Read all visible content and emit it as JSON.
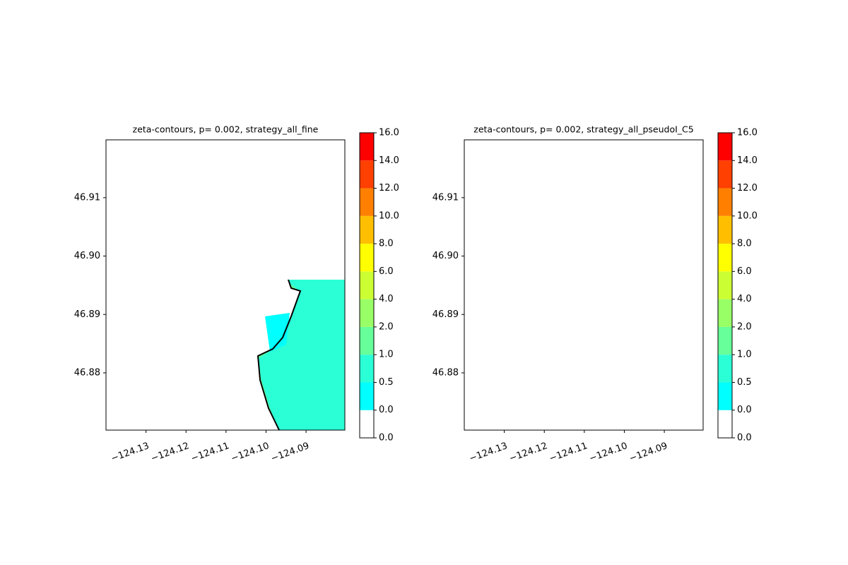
{
  "chart_data": [
    {
      "type": "contour",
      "title": "zeta-contours, p= 0.002, strategy_all_fine",
      "xlim": [
        -124.14,
        -124.0803
      ],
      "ylim": [
        46.8702,
        46.9199
      ],
      "xticks": [
        {
          "value": -124.13,
          "label": "−124.13"
        },
        {
          "value": -124.12,
          "label": "−124.12"
        },
        {
          "value": -124.11,
          "label": "−124.11"
        },
        {
          "value": -124.1,
          "label": "−124.10"
        },
        {
          "value": -124.09,
          "label": "−124.09"
        }
      ],
      "yticks": [
        {
          "value": 46.88,
          "label": "46.88"
        },
        {
          "value": 46.89,
          "label": "46.89"
        },
        {
          "value": 46.9,
          "label": "46.90"
        },
        {
          "value": 46.91,
          "label": "46.91"
        }
      ],
      "levels": [
        {
          "value": 0,
          "label": "0.0"
        },
        {
          "value": 0,
          "label": "0.0"
        },
        {
          "value": 0.5,
          "label": "0.5"
        },
        {
          "value": 1,
          "label": "1.0"
        },
        {
          "value": 2,
          "label": "2.0"
        },
        {
          "value": 4,
          "label": "4.0"
        },
        {
          "value": 6,
          "label": "6.0"
        },
        {
          "value": 8,
          "label": "8.0"
        },
        {
          "value": 10,
          "label": "10.0"
        },
        {
          "value": 12,
          "label": "12.0"
        },
        {
          "value": 14,
          "label": "14.0"
        },
        {
          "value": 16,
          "label": "16.0"
        }
      ],
      "colors": [
        "#ffffff",
        "#00ffff",
        "#2bffd5",
        "#66ff99",
        "#99ff66",
        "#ccff33",
        "#ffff00",
        "#ffbf00",
        "#ff8000",
        "#ff4000",
        "#ff0000"
      ]
    },
    {
      "type": "contour",
      "title": "zeta-contours, p= 0.002, strategy_all_pseudoI_C5",
      "xlim": [
        -124.14,
        -124.0803
      ],
      "ylim": [
        46.8702,
        46.9199
      ],
      "xticks": [
        {
          "value": -124.13,
          "label": "−124.13"
        },
        {
          "value": -124.12,
          "label": "−124.12"
        },
        {
          "value": -124.11,
          "label": "−124.11"
        },
        {
          "value": -124.1,
          "label": "−124.10"
        },
        {
          "value": -124.09,
          "label": "−124.09"
        }
      ],
      "yticks": [
        {
          "value": 46.88,
          "label": "46.88"
        },
        {
          "value": 46.89,
          "label": "46.89"
        },
        {
          "value": 46.9,
          "label": "46.90"
        },
        {
          "value": 46.91,
          "label": "46.91"
        }
      ],
      "levels": [
        {
          "value": 0,
          "label": "0.0"
        },
        {
          "value": 0,
          "label": "0.0"
        },
        {
          "value": 0.5,
          "label": "0.5"
        },
        {
          "value": 1,
          "label": "1.0"
        },
        {
          "value": 2,
          "label": "2.0"
        },
        {
          "value": 4,
          "label": "4.0"
        },
        {
          "value": 6,
          "label": "6.0"
        },
        {
          "value": 8,
          "label": "8.0"
        },
        {
          "value": 10,
          "label": "10.0"
        },
        {
          "value": 12,
          "label": "12.0"
        },
        {
          "value": 14,
          "label": "14.0"
        },
        {
          "value": 16,
          "label": "16.0"
        }
      ],
      "colors": [
        "#ffffff",
        "#00ffff",
        "#2bffd5",
        "#66ff99",
        "#99ff66",
        "#ccff33",
        "#ffff00",
        "#ffbf00",
        "#ff8000",
        "#ff4000",
        "#ff0000"
      ]
    }
  ]
}
